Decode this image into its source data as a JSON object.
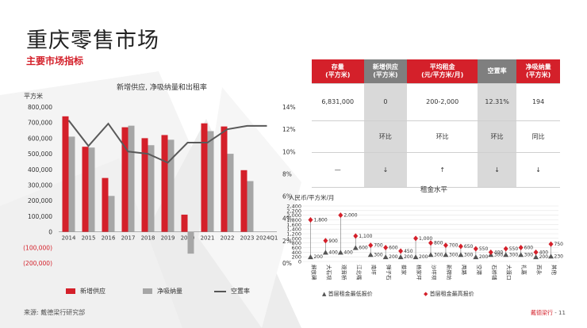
{
  "page": {
    "title": "重庆零售市场",
    "subtitle": "主要市场指标",
    "source": "来源: 戴德梁行研究部",
    "footer_brand": "戴德梁行",
    "footer_page": "11"
  },
  "kpi": {
    "headers": [
      "存量\n(平方米)",
      "新增供应\n(平方米)",
      "平均租金\n(元/平方米/月)",
      "空置率",
      "净吸纳量\n(平方米)"
    ],
    "values": [
      "6,831,000",
      "0",
      "200-2,000",
      "12.31%",
      "194"
    ],
    "labels": [
      "",
      "环比",
      "环比",
      "环比",
      "同比"
    ],
    "trends": [
      "—",
      "↓",
      "↑",
      "↓",
      "↓"
    ]
  },
  "colors": {
    "accent": "#d4202a",
    "gray": "#a6a6a6",
    "line": "#595959"
  },
  "chart_data": [
    {
      "type": "bar",
      "title": "新增供应, 净吸纳量和出租率",
      "ylabel": "平方米",
      "categories": [
        "2014",
        "2015",
        "2016",
        "2017",
        "2018",
        "2019",
        "2020",
        "2021",
        "2022",
        "2023",
        "2024Q1"
      ],
      "ylim": [
        -200000,
        800000
      ],
      "yticks": [
        "(200,000)",
        "(100,000)",
        "0",
        "100,000",
        "200,000",
        "300,000",
        "400,000",
        "500,000",
        "600,000",
        "700,000",
        "800,000"
      ],
      "y2ticks": [
        "0%",
        "2%",
        "4%",
        "6%",
        "8%",
        "10%",
        "12%",
        "14%"
      ],
      "y2lim": [
        0,
        14
      ],
      "series": [
        {
          "name": "新增供应",
          "kind": "bar",
          "values": [
            740000,
            545000,
            345000,
            670000,
            600000,
            620000,
            110000,
            695000,
            675000,
            395000,
            0
          ]
        },
        {
          "name": "净吸纳量",
          "kind": "bar",
          "values": [
            610000,
            540000,
            230000,
            680000,
            555000,
            590000,
            -140000,
            645000,
            500000,
            325000,
            0
          ]
        },
        {
          "name": "空置率",
          "kind": "line",
          "axis": "y2",
          "values": [
            12.8,
            10.5,
            12.5,
            10.0,
            9.8,
            9.0,
            10.8,
            10.8,
            12.0,
            12.3,
            12.3
          ]
        }
      ],
      "legend": "bottom"
    },
    {
      "type": "scatter",
      "title": "租金水平",
      "ylabel": "人民币/平方米/月",
      "ylim": [
        0,
        2400
      ],
      "yticks": [
        "0",
        "200",
        "400",
        "600",
        "800",
        "1,000",
        "1,200",
        "1,400",
        "1,600",
        "1,800",
        "2,000",
        "2,200",
        "2,400"
      ],
      "categories": [
        "解放碑",
        "大石坝",
        "观音桥",
        "江北嘴",
        "南坪",
        "弹子石",
        "蔡家",
        "杨家坪",
        "沙坪坝",
        "新牌坊",
        "两路",
        "空港",
        "石桥铺",
        "大渡口",
        "礼嘉",
        "西永",
        "其他"
      ],
      "series": [
        {
          "name": "首层租金最低报价",
          "values": [
            200,
            400,
            400,
            600,
            300,
            200,
            200,
            200,
            300,
            300,
            300,
            200,
            300,
            300,
            300,
            200,
            230
          ]
        },
        {
          "name": "首层租金最高报价",
          "values": [
            1800,
            900,
            2000,
            1100,
            700,
            600,
            450,
            1000,
            800,
            700,
            650,
            550,
            400,
            550,
            600,
            400,
            750
          ]
        }
      ],
      "legend": "bottom"
    }
  ]
}
